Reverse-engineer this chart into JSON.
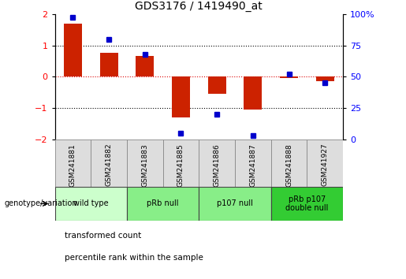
{
  "title": "GDS3176 / 1419490_at",
  "categories": [
    "GSM241881",
    "GSM241882",
    "GSM241883",
    "GSM241885",
    "GSM241886",
    "GSM241887",
    "GSM241888",
    "GSM241927"
  ],
  "red_bars": [
    1.7,
    0.75,
    0.65,
    -1.3,
    -0.55,
    -1.05,
    -0.05,
    -0.15
  ],
  "blue_squares": [
    97,
    80,
    68,
    5,
    20,
    3,
    52,
    45
  ],
  "bar_color": "#cc2200",
  "square_color": "#0000cc",
  "ylim_left": [
    -2,
    2
  ],
  "ylim_right": [
    0,
    100
  ],
  "yticks_left": [
    -2,
    -1,
    0,
    1,
    2
  ],
  "yticks_right": [
    0,
    25,
    50,
    75,
    100
  ],
  "ytick_labels_right": [
    "0",
    "25",
    "50",
    "75",
    "100%"
  ],
  "hlines": [
    -1,
    0,
    1
  ],
  "hline_colors": [
    "black",
    "red",
    "black"
  ],
  "hline_styles": [
    "dotted",
    "dotted",
    "dotted"
  ],
  "groups": [
    {
      "label": "wild type",
      "start": 0,
      "end": 2,
      "color": "#ccffcc"
    },
    {
      "label": "pRb null",
      "start": 2,
      "end": 4,
      "color": "#88ee88"
    },
    {
      "label": "p107 null",
      "start": 4,
      "end": 6,
      "color": "#88ee88"
    },
    {
      "label": "pRb p107\ndouble null",
      "start": 6,
      "end": 8,
      "color": "#33cc33"
    }
  ],
  "group_row_label": "genotype/variation",
  "legend_items": [
    {
      "color": "#cc2200",
      "label": "transformed count"
    },
    {
      "color": "#0000cc",
      "label": "percentile rank within the sample"
    }
  ],
  "xtick_box_color": "#dddddd",
  "background_color": "#ffffff"
}
